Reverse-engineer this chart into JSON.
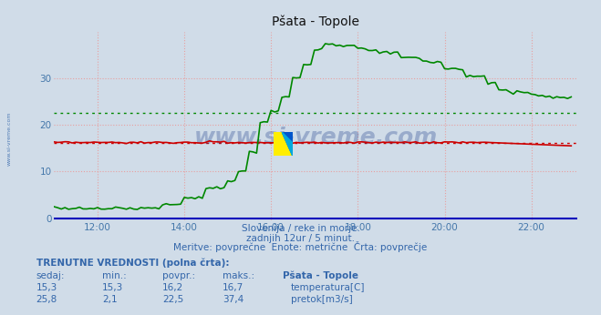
{
  "title": "Pšata - Topole",
  "bg_color": "#d0dce8",
  "plot_bg_color": "#d0dce8",
  "grid_color": "#e8a0a0",
  "x_ticks": [
    "12:00",
    "14:00",
    "16:00",
    "18:00",
    "20:00",
    "22:00"
  ],
  "x_tick_hours": [
    12,
    14,
    16,
    18,
    20,
    22
  ],
  "y_ticks": [
    0,
    10,
    20,
    30
  ],
  "temp_color": "#cc0000",
  "flow_color": "#008800",
  "temp_avg": 16.2,
  "flow_avg": 22.5,
  "temp_min": 15.3,
  "temp_max": 16.7,
  "flow_min": 2.1,
  "flow_max": 37.4,
  "temp_current": 15.3,
  "flow_current": 25.8,
  "subtitle1": "Slovenija / reke in morje.",
  "subtitle2": "zadnjih 12ur / 5 minut.",
  "subtitle3": "Meritve: povprečne  Enote: metrične  Črta: povprečje",
  "table_title": "TRENUTNE VREDNOSTI (polna črta):",
  "col_sedaj": "sedaj:",
  "col_min": "min.:",
  "col_povpr": "povpr.:",
  "col_maks": "maks.:",
  "col_station": "Pšata - Topole",
  "legend1": "temperatura[C]",
  "legend2": "pretok[m3/s]",
  "watermark": "www.si-vreme.com",
  "watermark_color": "#1a3a8a",
  "side_text": "www.si-vreme.com",
  "axis_color": "#0000cc",
  "tick_color": "#4477aa",
  "text_color": "#3366aa"
}
